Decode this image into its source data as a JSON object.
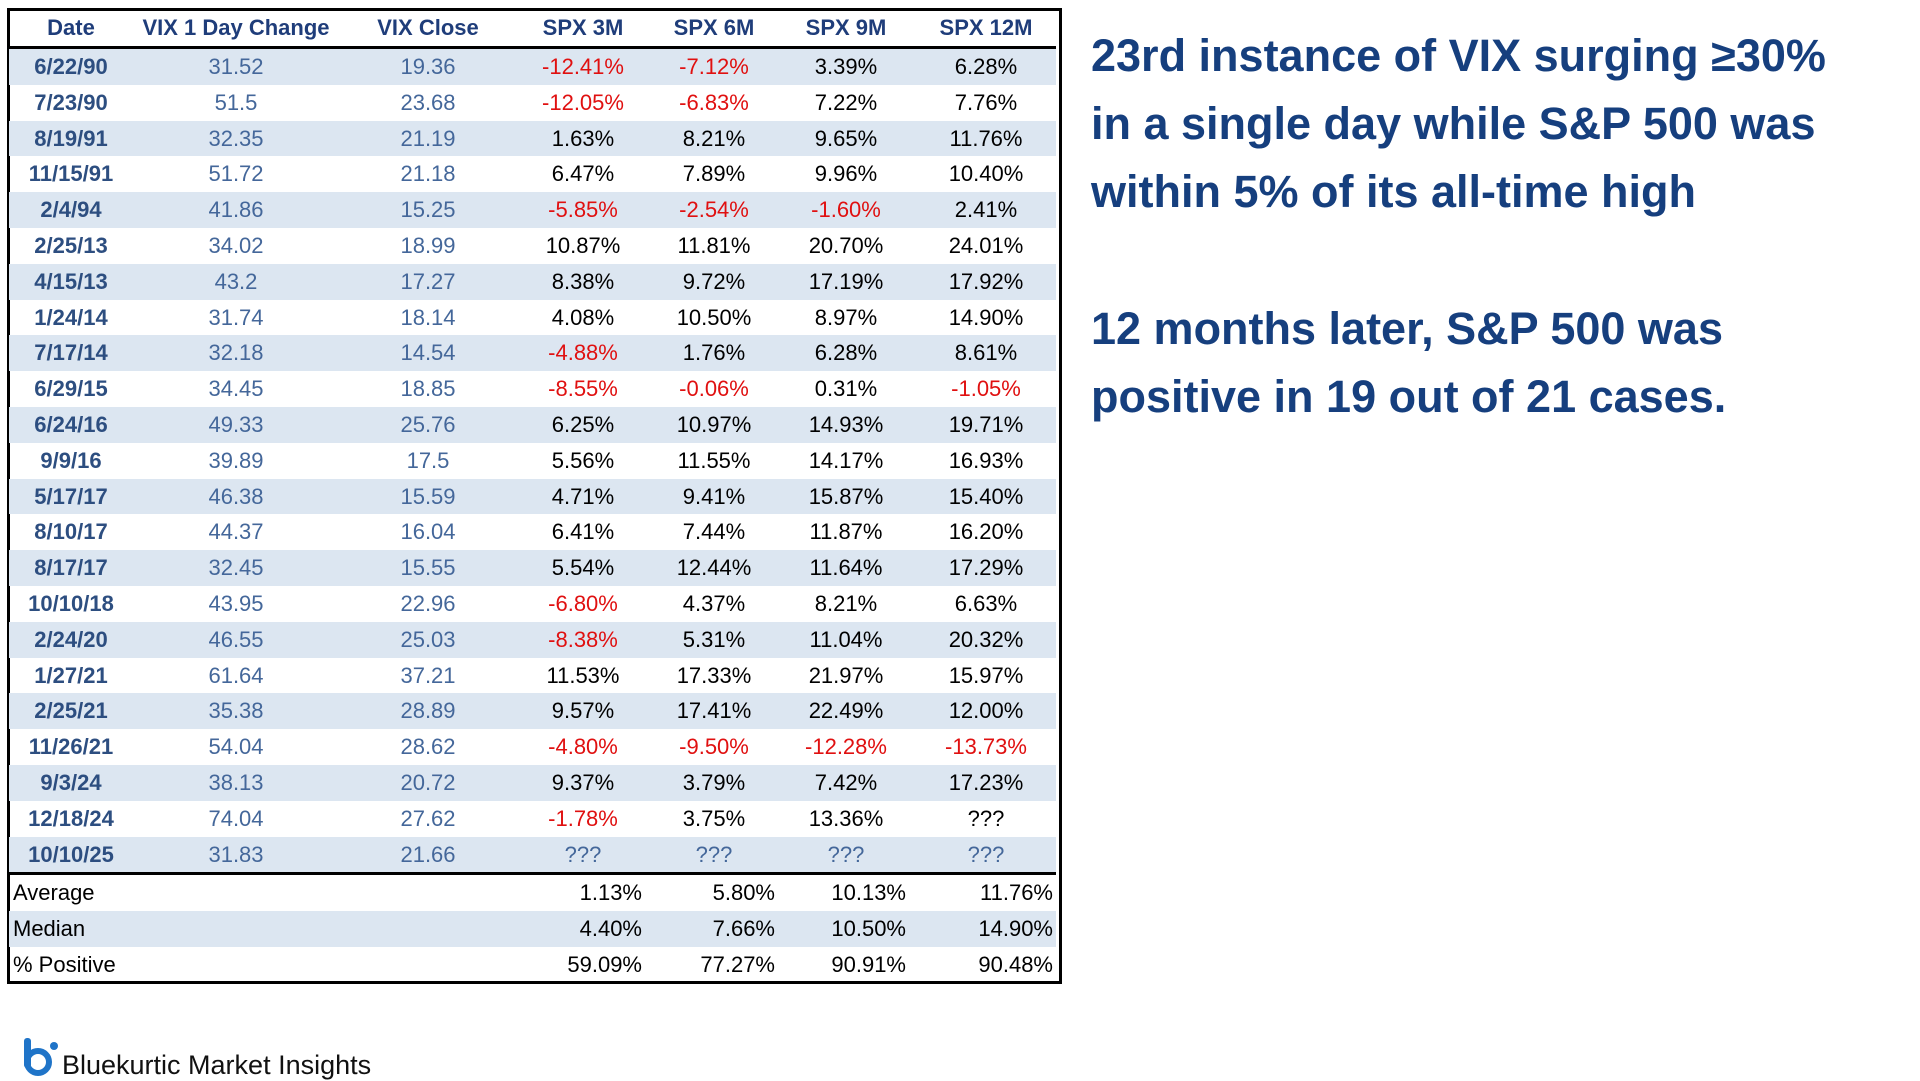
{
  "table": {
    "header": [
      "Date",
      "VIX  1 Day Change",
      "VIX Close",
      "SPX 3M",
      "SPX 6M",
      "SPX 9M",
      "SPX 12M"
    ],
    "rows": [
      [
        "6/22/90",
        "31.52",
        "19.36",
        "-12.41%",
        "-7.12%",
        "3.39%",
        "6.28%"
      ],
      [
        "7/23/90",
        "51.5",
        "23.68",
        "-12.05%",
        "-6.83%",
        "7.22%",
        "7.76%"
      ],
      [
        "8/19/91",
        "32.35",
        "21.19",
        "1.63%",
        "8.21%",
        "9.65%",
        "11.76%"
      ],
      [
        "11/15/91",
        "51.72",
        "21.18",
        "6.47%",
        "7.89%",
        "9.96%",
        "10.40%"
      ],
      [
        "2/4/94",
        "41.86",
        "15.25",
        "-5.85%",
        "-2.54%",
        "-1.60%",
        "2.41%"
      ],
      [
        "2/25/13",
        "34.02",
        "18.99",
        "10.87%",
        "11.81%",
        "20.70%",
        "24.01%"
      ],
      [
        "4/15/13",
        "43.2",
        "17.27",
        "8.38%",
        "9.72%",
        "17.19%",
        "17.92%"
      ],
      [
        "1/24/14",
        "31.74",
        "18.14",
        "4.08%",
        "10.50%",
        "8.97%",
        "14.90%"
      ],
      [
        "7/17/14",
        "32.18",
        "14.54",
        "-4.88%",
        "1.76%",
        "6.28%",
        "8.61%"
      ],
      [
        "6/29/15",
        "34.45",
        "18.85",
        "-8.55%",
        "-0.06%",
        "0.31%",
        "-1.05%"
      ],
      [
        "6/24/16",
        "49.33",
        "25.76",
        "6.25%",
        "10.97%",
        "14.93%",
        "19.71%"
      ],
      [
        "9/9/16",
        "39.89",
        "17.5",
        "5.56%",
        "11.55%",
        "14.17%",
        "16.93%"
      ],
      [
        "5/17/17",
        "46.38",
        "15.59",
        "4.71%",
        "9.41%",
        "15.87%",
        "15.40%"
      ],
      [
        "8/10/17",
        "44.37",
        "16.04",
        "6.41%",
        "7.44%",
        "11.87%",
        "16.20%"
      ],
      [
        "8/17/17",
        "32.45",
        "15.55",
        "5.54%",
        "12.44%",
        "11.64%",
        "17.29%"
      ],
      [
        "10/10/18",
        "43.95",
        "22.96",
        "-6.80%",
        "4.37%",
        "8.21%",
        "6.63%"
      ],
      [
        "2/24/20",
        "46.55",
        "25.03",
        "-8.38%",
        "5.31%",
        "11.04%",
        "20.32%"
      ],
      [
        "1/27/21",
        "61.64",
        "37.21",
        "11.53%",
        "17.33%",
        "21.97%",
        "15.97%"
      ],
      [
        "2/25/21",
        "35.38",
        "28.89",
        "9.57%",
        "17.41%",
        "22.49%",
        "12.00%"
      ],
      [
        "11/26/21",
        "54.04",
        "28.62",
        "-4.80%",
        "-9.50%",
        "-12.28%",
        "-13.73%"
      ],
      [
        "9/3/24",
        "38.13",
        "20.72",
        "9.37%",
        "3.79%",
        "7.42%",
        "17.23%"
      ],
      [
        "12/18/24",
        "74.04",
        "27.62",
        "-1.78%",
        "3.75%",
        "13.36%",
        "???"
      ],
      [
        "10/10/25",
        "31.83",
        "21.66",
        "???",
        "???",
        "???",
        "???"
      ]
    ],
    "summary": [
      [
        "Average",
        "1.13%",
        "5.80%",
        "10.13%",
        "11.76%"
      ],
      [
        "Median",
        "4.40%",
        "7.66%",
        "10.50%",
        "14.90%"
      ],
      [
        "% Positive",
        "59.09%",
        "77.27%",
        "90.91%",
        "90.48%"
      ]
    ]
  },
  "notes": [
    [
      "23rd instance of VIX surging ≥30%",
      "in a single day while S&P 500 was",
      "within 5% of its all-time high"
    ],
    [
      "12 months later, S&P 500 was",
      "positive in 19 out of 21 cases."
    ]
  ],
  "footer": {
    "brand": "Bluekurtic Market Insights"
  }
}
